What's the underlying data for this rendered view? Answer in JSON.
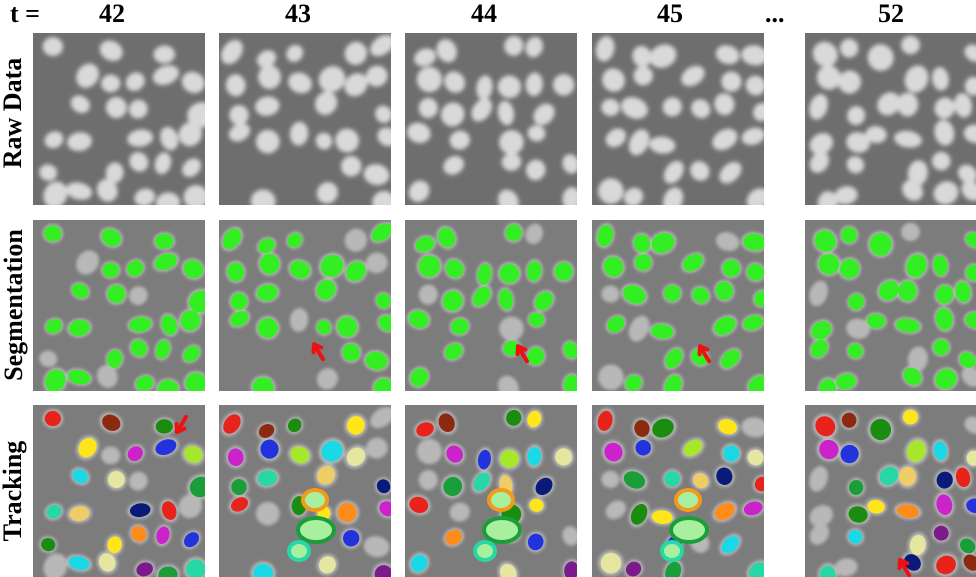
{
  "header": {
    "t_label": "t =",
    "frames": [
      "42",
      "43",
      "44",
      "45",
      "52"
    ],
    "ellipsis": "..."
  },
  "rows": [
    "Raw Data",
    "Segmentation",
    "Tracking"
  ],
  "colors": {
    "segmentation": "#33ee22",
    "arrow": "#ee1111",
    "highlight_orange": "#f39a1a",
    "highlight_green": "#1a9e3a",
    "highlight_teal": "#27d7a5"
  }
}
